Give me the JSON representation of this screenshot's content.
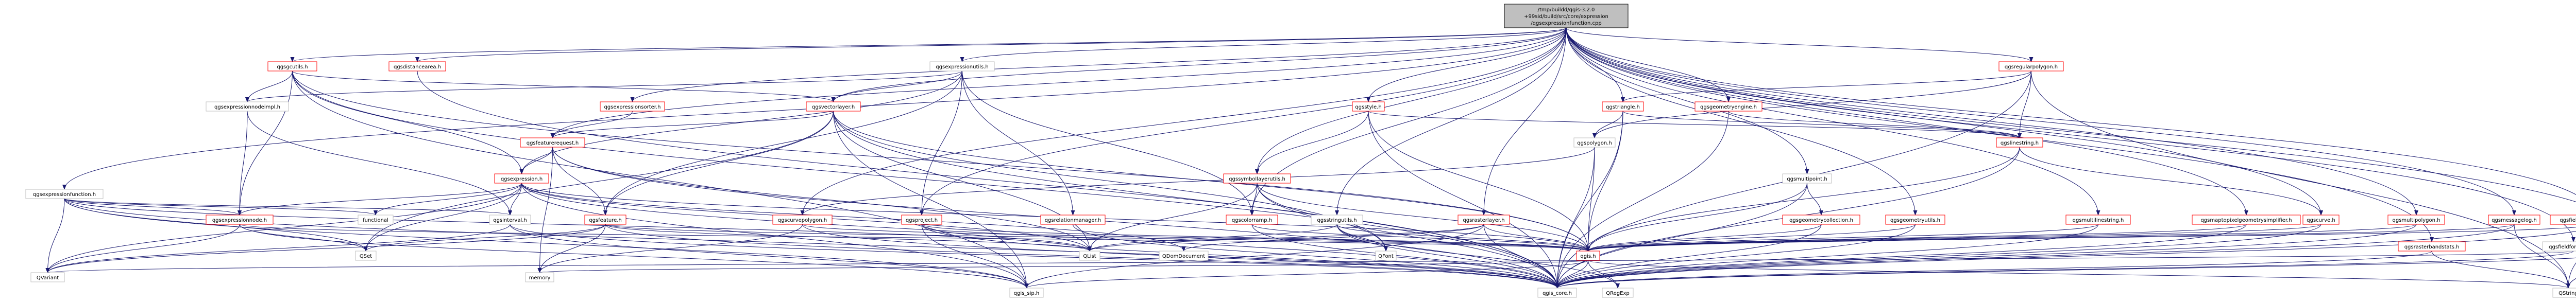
{
  "nodes": [
    {
      "id": "root",
      "lines": [
        "/tmp/buildd/qgis-3.2.0",
        "+99sid/build/src/core/expression",
        "/qgsexpressionfunction.cpp"
      ]
    },
    {
      "id": "qgscolorrampimpl",
      "lines": [
        "qgsgcutils.h"
      ]
    },
    {
      "id": "qgsdistancearea",
      "lines": [
        "qgsdistancearea.h"
      ]
    },
    {
      "id": "qgsexpressionutils",
      "lines": [
        "qgsexpressionutils.h"
      ]
    },
    {
      "id": "qgsexpressionsorter",
      "lines": [
        "qgsexpressionsorter.h"
      ]
    },
    {
      "id": "qgsstyle",
      "lines": [
        "qgsstyle.h"
      ]
    },
    {
      "id": "qgstriangle",
      "lines": [
        "qgstriangle.h"
      ]
    },
    {
      "id": "qgsgeometryengine",
      "lines": [
        "qgsgeometryengine.h"
      ]
    },
    {
      "id": "qgsregularpolygon",
      "lines": [
        "qgsregularpolygon.h"
      ]
    },
    {
      "id": "qgsexpressionnodeimpl",
      "lines": [
        "qgsexpressionnodeimpl.h"
      ]
    },
    {
      "id": "qgsvectorlayer",
      "lines": [
        "qgsvectorlayer.h"
      ]
    },
    {
      "id": "qgsfeaturerequest",
      "lines": [
        "qgsfeaturerequest.h"
      ]
    },
    {
      "id": "qgsexpressionfunction",
      "lines": [
        "qgsexpressionfunction.h"
      ]
    },
    {
      "id": "qgsexpression",
      "lines": [
        "qgsexpression.h"
      ]
    },
    {
      "id": "qgsexpressionnode",
      "lines": [
        "qgsexpressionnode.h"
      ]
    },
    {
      "id": "functional",
      "lines": [
        "functional"
      ]
    },
    {
      "id": "qgsinterval",
      "lines": [
        "qgsinterval.h"
      ]
    },
    {
      "id": "qgsfeature",
      "lines": [
        "qgsfeature.h"
      ]
    },
    {
      "id": "qgscurvepolygon",
      "lines": [
        "qgscurvepolygon.h"
      ]
    },
    {
      "id": "qgsproject",
      "lines": [
        "qgsproject.h"
      ]
    },
    {
      "id": "qgsrelationmanager",
      "lines": [
        "qgsrelationmanager.h"
      ]
    },
    {
      "id": "qgssymbollayerutils",
      "lines": [
        "qgssymbollayerutils.h"
      ]
    },
    {
      "id": "qgscolorramp",
      "lines": [
        "qgscolorramp.h"
      ]
    },
    {
      "id": "qgsstringutils",
      "lines": [
        "qgsstringutils.h"
      ]
    },
    {
      "id": "qgsrasterlayer",
      "lines": [
        "qgsrasterlayer.h"
      ]
    },
    {
      "id": "qgspolygon",
      "lines": [
        "qgspolygon.h"
      ]
    },
    {
      "id": "qgsmultipoint",
      "lines": [
        "qgsmultipoint.h"
      ]
    },
    {
      "id": "qgsgeometrycollection",
      "lines": [
        "qgsgeometrycollection.h"
      ]
    },
    {
      "id": "qgsgeometryutils",
      "lines": [
        "qgsgeometryutils.h"
      ]
    },
    {
      "id": "qgslinestring",
      "lines": [
        "qgslinestring.h"
      ]
    },
    {
      "id": "qgsmultilinestring",
      "lines": [
        "qgsmultilinestring.h"
      ]
    },
    {
      "id": "qgsmaptopixelgeometrysimplifier",
      "lines": [
        "qgsmaptopixelgeometrysimplifier.h"
      ]
    },
    {
      "id": "qgscurve",
      "lines": [
        "qgscurve.h"
      ]
    },
    {
      "id": "qgsmultipolygon",
      "lines": [
        "qgsmultipolygon.h"
      ]
    },
    {
      "id": "qgsmessagelog",
      "lines": [
        "qgsmessagelog.h"
      ]
    },
    {
      "id": "qgsfieldformatterregistry",
      "lines": [
        "qgsfieldformatterregistry.h"
      ]
    },
    {
      "id": "qgsfieldformatter",
      "lines": [
        "qgsfieldformatter.h"
      ]
    },
    {
      "id": "qgsrasterbandstats",
      "lines": [
        "qgsrasterbandstats.h"
      ]
    },
    {
      "id": "qgsexception",
      "lines": [
        "qgsexception.h"
      ]
    },
    {
      "id": "qset",
      "lines": [
        "QSet"
      ]
    },
    {
      "id": "qlist",
      "lines": [
        "QList"
      ]
    },
    {
      "id": "qdomdocument",
      "lines": [
        "QDomDocument"
      ]
    },
    {
      "id": "qfont",
      "lines": [
        "QFont"
      ]
    },
    {
      "id": "qgis",
      "lines": [
        "qgis.h"
      ]
    },
    {
      "id": "qvariant",
      "lines": [
        "QVariant"
      ]
    },
    {
      "id": "memory",
      "lines": [
        "memory"
      ]
    },
    {
      "id": "qgis_sip",
      "lines": [
        "qgis_sip.h"
      ]
    },
    {
      "id": "qgis_core",
      "lines": [
        "qgis_core.h"
      ]
    },
    {
      "id": "qregexp",
      "lines": [
        "QRegExp"
      ]
    },
    {
      "id": "qstring",
      "lines": [
        "QString"
      ]
    }
  ],
  "edges": [
    [
      "root",
      "qgscolorrampimpl"
    ],
    [
      "root",
      "qgsdistancearea"
    ],
    [
      "root",
      "qgsexpressionutils"
    ],
    [
      "root",
      "qgsexpressionsorter"
    ],
    [
      "root",
      "qgsstyle"
    ],
    [
      "root",
      "qgstriangle"
    ],
    [
      "root",
      "qgsgeometryengine"
    ],
    [
      "root",
      "qgsregularpolygon"
    ],
    [
      "root",
      "qgsexpressionfunction"
    ],
    [
      "root",
      "qgsvectorlayer"
    ],
    [
      "root",
      "qgsfeaturerequest"
    ],
    [
      "root",
      "qgscurvepolygon"
    ],
    [
      "root",
      "qgsproject"
    ],
    [
      "root",
      "qgssymbollayerutils"
    ],
    [
      "root",
      "qgscolorramp"
    ],
    [
      "root",
      "qgsstringutils"
    ],
    [
      "root",
      "qgsrasterlayer"
    ],
    [
      "root",
      "qgsmultipoint"
    ],
    [
      "root",
      "qgsgeometryutils"
    ],
    [
      "root",
      "qgsmultilinestring"
    ],
    [
      "root",
      "qgsmaptopixelgeometrysimplifier"
    ],
    [
      "root",
      "qgscurve"
    ],
    [
      "root",
      "qgsmultipolygon"
    ],
    [
      "root",
      "qgsmessagelog"
    ],
    [
      "root",
      "qgsfieldformatterregistry"
    ],
    [
      "root",
      "qgsfieldformatter"
    ],
    [
      "root",
      "qgsrasterbandstats"
    ],
    [
      "root",
      "qgsexception"
    ],
    [
      "qgscolorrampimpl",
      "qgsexpressionnodeimpl"
    ],
    [
      "qgscolorrampimpl",
      "qgsvectorlayer"
    ],
    [
      "qgscolorrampimpl",
      "qgsexpression"
    ],
    [
      "qgscolorrampimpl",
      "qgsexpressionnode"
    ],
    [
      "qgscolorrampimpl",
      "qgis_sip"
    ],
    [
      "qgscolorrampimpl",
      "qgis_core"
    ],
    [
      "qgscolorrampimpl",
      "qgis"
    ],
    [
      "qgsdistancearea",
      "qgis_core"
    ],
    [
      "qgsexpressionutils",
      "qgsexpressionnodeimpl"
    ],
    [
      "qgsexpressionutils",
      "qgsvectorlayer"
    ],
    [
      "qgsexpressionutils",
      "qgsexpression"
    ],
    [
      "qgsexpressionutils",
      "qgsfeature"
    ],
    [
      "qgsexpressionutils",
      "qgsproject"
    ],
    [
      "qgsexpressionutils",
      "qgsrelationmanager"
    ],
    [
      "qgsexpressionutils",
      "qgscolorramp"
    ],
    [
      "qgsexpressionsorter",
      "qgsfeaturerequest"
    ],
    [
      "qgsstyle",
      "qgssymbollayerutils"
    ],
    [
      "qgsstyle",
      "qgis"
    ],
    [
      "qgsstyle",
      "qgis_core"
    ],
    [
      "qgsstyle",
      "qgslinestring"
    ],
    [
      "qgstriangle",
      "qgspolygon"
    ],
    [
      "qgstriangle",
      "qgslinestring"
    ],
    [
      "qgstriangle",
      "qgis_core"
    ],
    [
      "qgstriangle",
      "qgis"
    ],
    [
      "qgsgeometryengine",
      "qgslinestring"
    ],
    [
      "qgsgeometryengine",
      "qgis_core"
    ],
    [
      "qgsregularpolygon",
      "qgstriangle"
    ],
    [
      "qgsregularpolygon",
      "qgslinestring"
    ],
    [
      "qgsregularpolygon",
      "qgspolygon"
    ],
    [
      "qgsregularpolygon",
      "qgis_core"
    ],
    [
      "qgsregularpolygon",
      "qstring"
    ],
    [
      "qgsexpressionnodeimpl",
      "qgsexpressionnode"
    ],
    [
      "qgsexpressionnodeimpl",
      "qgsinterval"
    ],
    [
      "qgsvectorlayer",
      "qgsfeaturerequest"
    ],
    [
      "qgsvectorlayer",
      "qgsfeature"
    ],
    [
      "qgsvectorlayer",
      "qgis"
    ],
    [
      "qgsvectorlayer",
      "qlist"
    ],
    [
      "qgsvectorlayer",
      "qset"
    ],
    [
      "qgsvectorlayer",
      "qgis_core"
    ],
    [
      "qgsvectorlayer",
      "qgis_sip"
    ],
    [
      "qgsvectorlayer",
      "qfont"
    ],
    [
      "qgsfeaturerequest",
      "qgsexpression"
    ],
    [
      "qgsfeaturerequest",
      "qgsfeature"
    ],
    [
      "qgsfeaturerequest",
      "qlist"
    ],
    [
      "qgsfeaturerequest",
      "qgis_core"
    ],
    [
      "qgsfeaturerequest",
      "memory"
    ],
    [
      "qgsexpressionfunction",
      "qgsexpressionnode"
    ],
    [
      "qgsexpressionfunction",
      "functional"
    ],
    [
      "qgsexpressionfunction",
      "qgsinterval"
    ],
    [
      "qgsexpressionfunction",
      "qset"
    ],
    [
      "qgsexpressionfunction",
      "qvariant"
    ],
    [
      "qgsexpressionfunction",
      "qgis_sip"
    ],
    [
      "qgsexpressionfunction",
      "qgis_core"
    ],
    [
      "qgsexpressionfunction",
      "qlist"
    ],
    [
      "qgsexpression",
      "qgsexpressionnode"
    ],
    [
      "qgsexpression",
      "functional"
    ],
    [
      "qgsexpression",
      "qgsinterval"
    ],
    [
      "qgsexpression",
      "qset"
    ],
    [
      "qgsexpression",
      "qvariant"
    ],
    [
      "qgsexpression",
      "qlist"
    ],
    [
      "qgsexpression",
      "qdomdocument"
    ],
    [
      "qgsexpression",
      "qgis"
    ],
    [
      "qgsexpression",
      "qgis_sip"
    ],
    [
      "qgsexpression",
      "qgis_core"
    ],
    [
      "qgsexpressionnode",
      "qset"
    ],
    [
      "qgsexpressionnode",
      "qvariant"
    ],
    [
      "qgsexpressionnode",
      "qgis"
    ],
    [
      "qgsexpressionnode",
      "qgis_sip"
    ],
    [
      "qgsinterval",
      "qvariant"
    ],
    [
      "qgsinterval",
      "qgis_core"
    ],
    [
      "qgsinterval",
      "qgis_sip"
    ],
    [
      "qgsfeature",
      "qlist"
    ],
    [
      "qgsfeature",
      "qvariant"
    ],
    [
      "qgsfeature",
      "qset"
    ],
    [
      "qgsfeature",
      "memory"
    ],
    [
      "qgsfeature",
      "qgis_core"
    ],
    [
      "qgsfeature",
      "qgis"
    ],
    [
      "qgscurvepolygon",
      "qgis"
    ],
    [
      "qgscurvepolygon",
      "qgis_core"
    ],
    [
      "qgscurvepolygon",
      "memory"
    ],
    [
      "qgsproject",
      "qgis"
    ],
    [
      "qgsproject",
      "qlist"
    ],
    [
      "qgsproject",
      "qgis_core"
    ],
    [
      "qgsproject",
      "qgis_sip"
    ],
    [
      "qgsrelationmanager",
      "qgis_core"
    ],
    [
      "qgssymbollayerutils",
      "qgscolorramp"
    ],
    [
      "qgssymbollayerutils",
      "qgis"
    ],
    [
      "qgssymbollayerutils",
      "qfont"
    ],
    [
      "qgssymbollayerutils",
      "qgis_core"
    ],
    [
      "qgssymbollayerutils",
      "qlist"
    ],
    [
      "qgscolorramp",
      "qgis"
    ],
    [
      "qgscolorramp",
      "qgis_core"
    ],
    [
      "qgsstringutils",
      "qlist"
    ],
    [
      "qgsstringutils",
      "qgis"
    ],
    [
      "qgsstringutils",
      "qregexp"
    ],
    [
      "qgsstringutils",
      "qgis_core"
    ],
    [
      "qgsstringutils",
      "qfont"
    ],
    [
      "qgsrasterlayer",
      "qgis"
    ],
    [
      "qgsrasterlayer",
      "qgis_core"
    ],
    [
      "qgsrasterlayer",
      "qgis_sip"
    ],
    [
      "qgsrasterlayer",
      "qlist"
    ],
    [
      "qgsrasterlayer",
      "qdomdocument"
    ],
    [
      "qgspolygon",
      "qgscurvepolygon"
    ],
    [
      "qgspolygon",
      "qgis"
    ],
    [
      "qgspolygon",
      "qgis_core"
    ],
    [
      "qgsmultipoint",
      "qgsgeometrycollection"
    ],
    [
      "qgsmultipoint",
      "qgis"
    ],
    [
      "qgsmultipoint",
      "qgis_core"
    ],
    [
      "qgsgeometrycollection",
      "qgis"
    ],
    [
      "qgsgeometrycollection",
      "qgis_core"
    ],
    [
      "qgsgeometryutils",
      "qgis_core"
    ],
    [
      "qgsgeometryutils",
      "qgis"
    ],
    [
      "qgslinestring",
      "qgscurve"
    ],
    [
      "qgslinestring",
      "qgis_core"
    ],
    [
      "qgslinestring",
      "qgis"
    ],
    [
      "qgsmultilinestring",
      "qgis_core"
    ],
    [
      "qgsmultilinestring",
      "qgis"
    ],
    [
      "qgsmaptopixelgeometrysimplifier",
      "qgis_core"
    ],
    [
      "qgsmaptopixelgeometrysimplifier",
      "qgis"
    ],
    [
      "qgscurve",
      "qgis"
    ],
    [
      "qgscurve",
      "qgis_core"
    ],
    [
      "qgsmultipolygon",
      "qgis_core"
    ],
    [
      "qgsmultipolygon",
      "qgis"
    ],
    [
      "qgsmessagelog",
      "qgis"
    ],
    [
      "qgsmessagelog",
      "qgis_core"
    ],
    [
      "qgsmessagelog",
      "qstring"
    ],
    [
      "qgsfieldformatterregistry",
      "qgis_core"
    ],
    [
      "qgsfieldformatterregistry",
      "qgis"
    ],
    [
      "qgsfieldformatterregistry",
      "qstring"
    ],
    [
      "qgsfieldformatter",
      "qgis_core"
    ],
    [
      "qgsfieldformatter",
      "qvariant"
    ],
    [
      "qgsrasterbandstats",
      "qgis_core"
    ],
    [
      "qgsrasterbandstats",
      "qstring"
    ],
    [
      "qgsexception",
      "qgis_core"
    ],
    [
      "qgsexception",
      "qstring"
    ],
    [
      "qgis",
      "qgis_sip"
    ],
    [
      "qgis",
      "qgis_core"
    ],
    [
      "qgis",
      "qregexp"
    ],
    [
      "qgis",
      "memory"
    ],
    [
      "qgis",
      "qstring"
    ]
  ]
}
